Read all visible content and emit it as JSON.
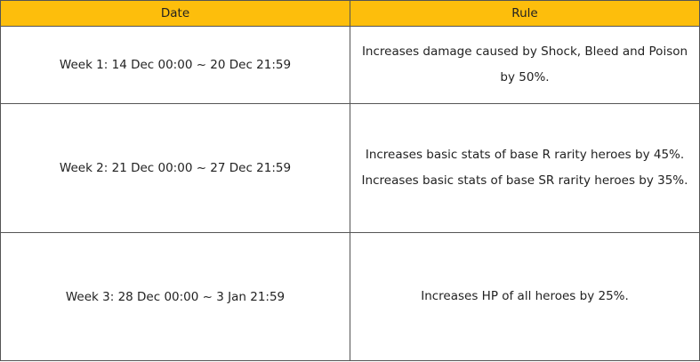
{
  "table": {
    "headers": {
      "date": "Date",
      "rule": "Rule"
    },
    "rows": [
      {
        "date": "Week 1: 14 Dec 00:00 ~ 20 Dec 21:59",
        "rule": [
          "Increases damage caused by Shock, Bleed and Poison by 50%."
        ]
      },
      {
        "date": "Week 2: 21 Dec 00:00 ~ 27 Dec 21:59",
        "rule": [
          "Increases basic stats of base R rarity heroes by 45%.",
          "Increases basic stats of base SR rarity heroes by 35%."
        ]
      },
      {
        "date": "Week 3: 28 Dec 00:00 ~ 3 Jan 21:59",
        "rule": [
          "Increases HP of all heroes by 25%."
        ]
      }
    ]
  },
  "colors": {
    "header_background": "#fdbe0c",
    "border": "#555555",
    "text": "#222222"
  }
}
